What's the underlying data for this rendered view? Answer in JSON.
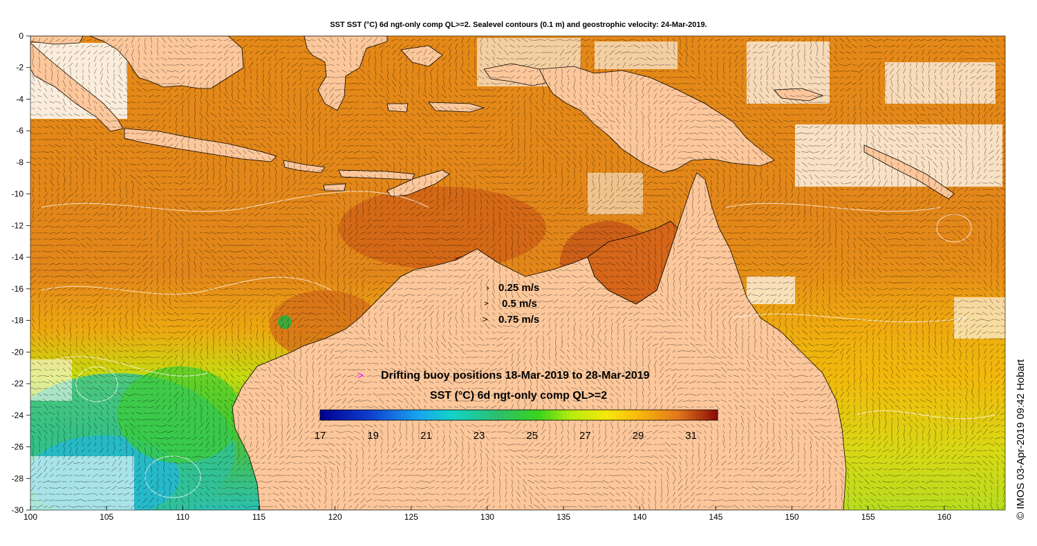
{
  "title": "SST SST (°C) 6d ngt-only comp QL>=2. Sealevel contours (0.1 m) and geostrophic velocity: 24-Mar-2019.",
  "credit": "© IMOS 03-Apr-2019 09:42 Hobart",
  "axes": {
    "lon_ticks": [
      "100",
      "105",
      "110",
      "115",
      "120",
      "125",
      "130",
      "135",
      "140",
      "145",
      "150",
      "155",
      "160"
    ],
    "lat_ticks": [
      "0",
      "-2",
      "-4",
      "-6",
      "-8",
      "-10",
      "-12",
      "-14",
      "-16",
      "-18",
      "-20",
      "-22",
      "-24",
      "-26",
      "-28",
      "-30"
    ],
    "lon_range": [
      100,
      164
    ],
    "lat_range": [
      -30,
      0
    ]
  },
  "velocity_legend": [
    {
      "label": "0.25 m/s",
      "speed": 0.25
    },
    {
      "label": "0.5 m/s",
      "speed": 0.5
    },
    {
      "label": "0.75 m/s",
      "speed": 0.75
    }
  ],
  "buoy_legend": {
    "marker": ">",
    "label": "Drifting buoy positions 18-Mar-2019 to 28-Mar-2019"
  },
  "colorbar": {
    "title": "SST (°C) 6d ngt-only comp QL>=2",
    "range": [
      17,
      32
    ],
    "tick_labels": [
      "17",
      "19",
      "21",
      "23",
      "25",
      "27",
      "29",
      "31"
    ]
  },
  "colors": {
    "land": "#fcc79b",
    "warm_water": "#e58a16",
    "hot_water": "#cf6417",
    "cloud": "#ffffff",
    "buoy": "#ff00ff"
  }
}
